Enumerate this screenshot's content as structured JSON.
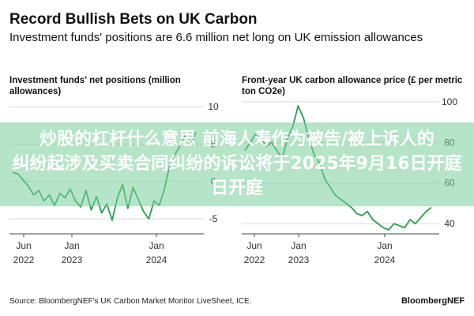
{
  "header": {
    "title": "Record Bullish Bets on UK Carbon",
    "subtitle": "Investment funds' positions are 6.6 million net long on UK emission allowances"
  },
  "chart_data": [
    {
      "type": "line",
      "title": "Investment funds' net positions (million allowances)",
      "y_ticks": [
        "10",
        "5",
        "0",
        "-5"
      ],
      "ylim": [
        -7,
        12
      ],
      "x_ticks": [
        {
          "line1": "Jun",
          "line2": "2022"
        },
        {
          "line1": "Jan",
          "line2": "2023"
        },
        {
          "line1": "Jan",
          "line2": "2024"
        }
      ],
      "grid": true,
      "color": "#2a9d4f",
      "series": [
        {
          "values": [
            1.2,
            1.0,
            0.2,
            -0.6,
            -1.8,
            -1.2,
            -2.6,
            -1.8,
            -3.2,
            -1.6,
            -2.2,
            -1.0,
            -2.6,
            -3.4,
            -1.2,
            -3.8,
            -2.0,
            -4.2,
            -3.0,
            -5.2,
            -2.2,
            -0.4,
            -3.6,
            -0.8,
            -2.4,
            -4.0,
            -5.0,
            -2.6,
            -3.2,
            -1.0,
            2.2,
            3.6,
            4.8,
            6.2,
            5.0,
            6.6
          ]
        }
      ]
    },
    {
      "type": "line",
      "title": "Front-year UK carbon allowance price (£ per metric ton CO2e)",
      "y_ticks": [
        "100",
        "80",
        "60",
        "40"
      ],
      "ylim": [
        35,
        105
      ],
      "x_ticks": [
        {
          "line1": "Jun",
          "line2": "2022"
        },
        {
          "line1": "Jan",
          "line2": "2023"
        },
        {
          "line1": "Jan",
          "line2": "2024"
        }
      ],
      "grid": true,
      "color": "#2a9d4f",
      "series": [
        {
          "values": [
            76,
            80,
            84,
            82,
            78,
            80,
            76,
            72,
            82,
            88,
            98,
            92,
            82,
            74,
            70,
            62,
            58,
            54,
            52,
            50,
            48,
            45,
            44,
            46,
            42,
            40,
            38,
            37,
            40,
            39,
            38,
            42,
            40,
            43,
            46,
            48
          ]
        }
      ]
    }
  ],
  "overlay": {
    "line1": "炒股的杠杆什么意思 前海人寿作为被告/被上诉人的",
    "line2": "纠纷起涉及买卖合同纠纷的诉讼将于2025年9月16日开庭",
    "line3": "日开庭"
  },
  "footer": {
    "source": "Source: BloombergNEF's UK Carbon Market Monitor LiveSheet, ICE.",
    "brand": "BloombergNEF"
  }
}
